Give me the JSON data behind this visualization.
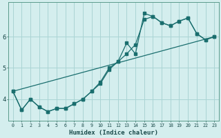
{
  "title": "",
  "xlabel": "Humidex (Indice chaleur)",
  "bg_color": "#d4eeee",
  "line_color": "#1a6e6e",
  "grid_color": "#aad4d4",
  "x_min": -0.5,
  "x_max": 23.5,
  "y_min": 3.3,
  "y_max": 7.1,
  "yticks": [
    4,
    5,
    6
  ],
  "xticks": [
    0,
    1,
    2,
    3,
    4,
    5,
    6,
    7,
    8,
    9,
    10,
    11,
    12,
    13,
    14,
    15,
    16,
    17,
    18,
    19,
    20,
    21,
    22,
    23
  ],
  "line1_x": [
    0,
    1,
    2,
    3,
    4,
    5,
    6,
    7,
    8,
    9,
    10,
    11,
    12,
    13,
    14,
    15,
    16,
    17,
    18,
    19,
    20,
    21,
    22,
    23
  ],
  "line1_y": [
    4.25,
    3.65,
    4.0,
    3.75,
    3.6,
    3.7,
    3.7,
    3.85,
    4.0,
    4.25,
    4.55,
    5.0,
    5.2,
    5.45,
    5.75,
    6.55,
    6.65,
    6.45,
    6.35,
    6.5,
    6.6,
    6.1,
    5.9,
    6.0
  ],
  "line2_x": [
    0,
    1,
    2,
    3,
    4,
    5,
    6,
    7,
    8,
    9,
    10,
    11,
    12,
    13,
    14,
    15,
    16,
    17,
    18,
    19,
    20,
    21,
    22,
    23
  ],
  "line2_y": [
    4.25,
    3.65,
    4.0,
    3.75,
    3.6,
    3.7,
    3.7,
    3.85,
    4.0,
    4.25,
    4.5,
    4.95,
    5.2,
    5.8,
    5.45,
    6.75,
    6.65,
    6.45,
    6.35,
    6.5,
    6.6,
    6.1,
    5.9,
    6.0
  ],
  "line3_x": [
    0,
    23
  ],
  "line3_y": [
    4.25,
    6.0
  ]
}
